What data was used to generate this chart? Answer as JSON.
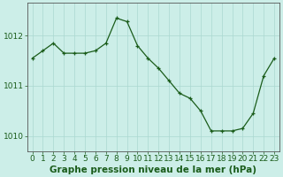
{
  "x": [
    0,
    1,
    2,
    3,
    4,
    5,
    6,
    7,
    8,
    9,
    10,
    11,
    12,
    13,
    14,
    15,
    16,
    17,
    18,
    19,
    20,
    21,
    22,
    23
  ],
  "y": [
    1011.55,
    1011.7,
    1011.85,
    1011.65,
    1011.65,
    1011.65,
    1011.7,
    1011.85,
    1012.35,
    1012.28,
    1011.8,
    1011.55,
    1011.35,
    1011.1,
    1010.85,
    1010.75,
    1010.5,
    1010.1,
    1010.1,
    1010.1,
    1010.15,
    1010.45,
    1011.2,
    1011.55
  ],
  "line_color": "#1a5c1a",
  "marker": "+",
  "marker_color": "#1a5c1a",
  "bg_color": "#cceee8",
  "grid_color": "#aad8d0",
  "axis_color": "#555555",
  "ylabel_ticks": [
    1010,
    1011,
    1012
  ],
  "xlabel": "Graphe pression niveau de la mer (hPa)",
  "ylim": [
    1009.7,
    1012.65
  ],
  "xlim": [
    -0.5,
    23.5
  ],
  "tick_label_color": "#1a5c1a",
  "xlabel_color": "#1a5c1a",
  "fontsize_xlabel": 7.5,
  "fontsize_ticks": 6.5
}
